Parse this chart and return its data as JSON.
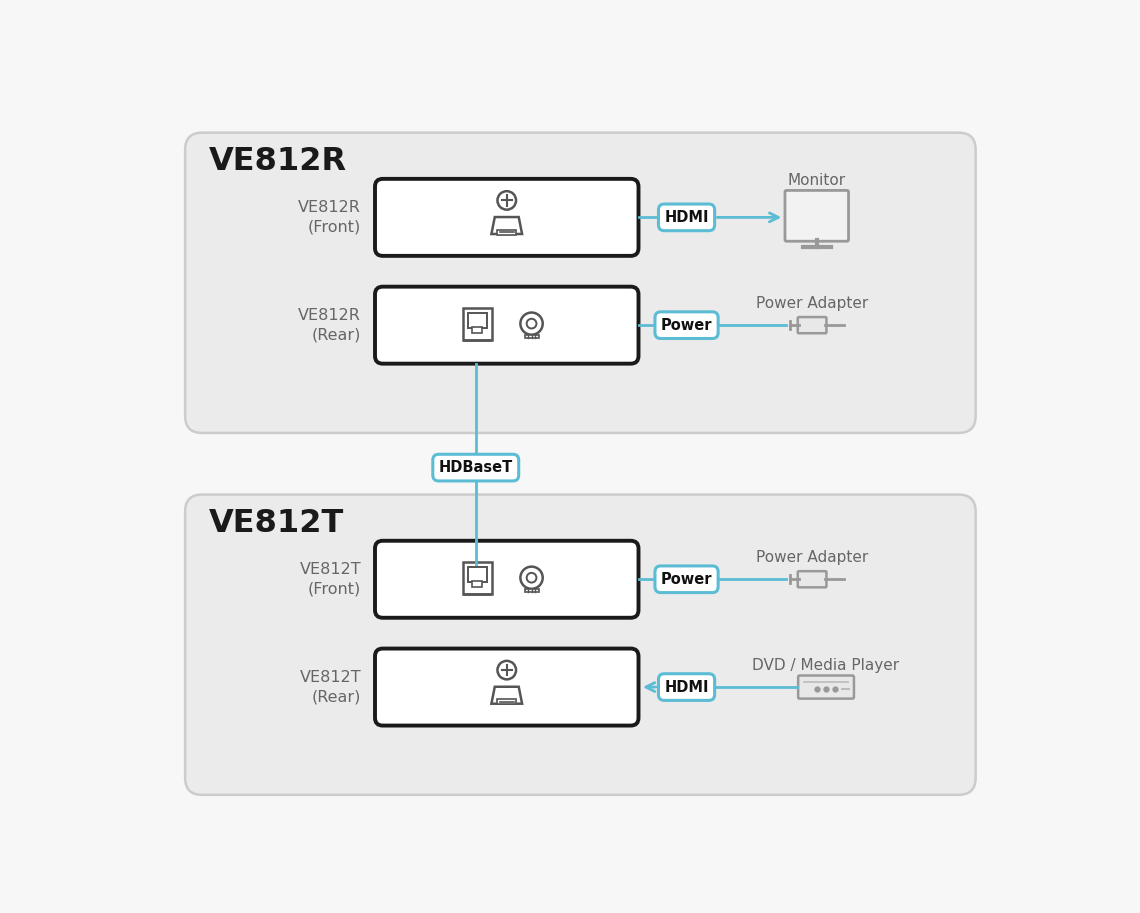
{
  "bg_color": "#f7f7f7",
  "box_bg": "#ffffff",
  "box_border": "#1a1a1a",
  "rounded_box_bg": "#ebebeb",
  "rounded_box_border": "#cccccc",
  "blue_color": "#5bbcd4",
  "blue_fill": "#6cc8dc",
  "gray_color": "#aaaaaa",
  "dark_gray": "#666666",
  "icon_gray": "#555555",
  "text_dark": "#1a1a1a",
  "title_ve812r": "VE812R",
  "title_ve812t": "VE812T",
  "label_front_r": "VE812R\n(Front)",
  "label_rear_r": "VE812R\n(Rear)",
  "label_front_t": "VE812T\n(Front)",
  "label_rear_t": "VE812T\n(Rear)",
  "label_hdmi": "HDMI",
  "label_power": "Power",
  "label_hdbaset": "HDBaseT",
  "label_monitor": "Monitor",
  "label_power_adapter": "Power Adapter",
  "label_dvd": "DVD / Media Player",
  "fig_w": 11.4,
  "fig_h": 9.13,
  "dpi": 100
}
